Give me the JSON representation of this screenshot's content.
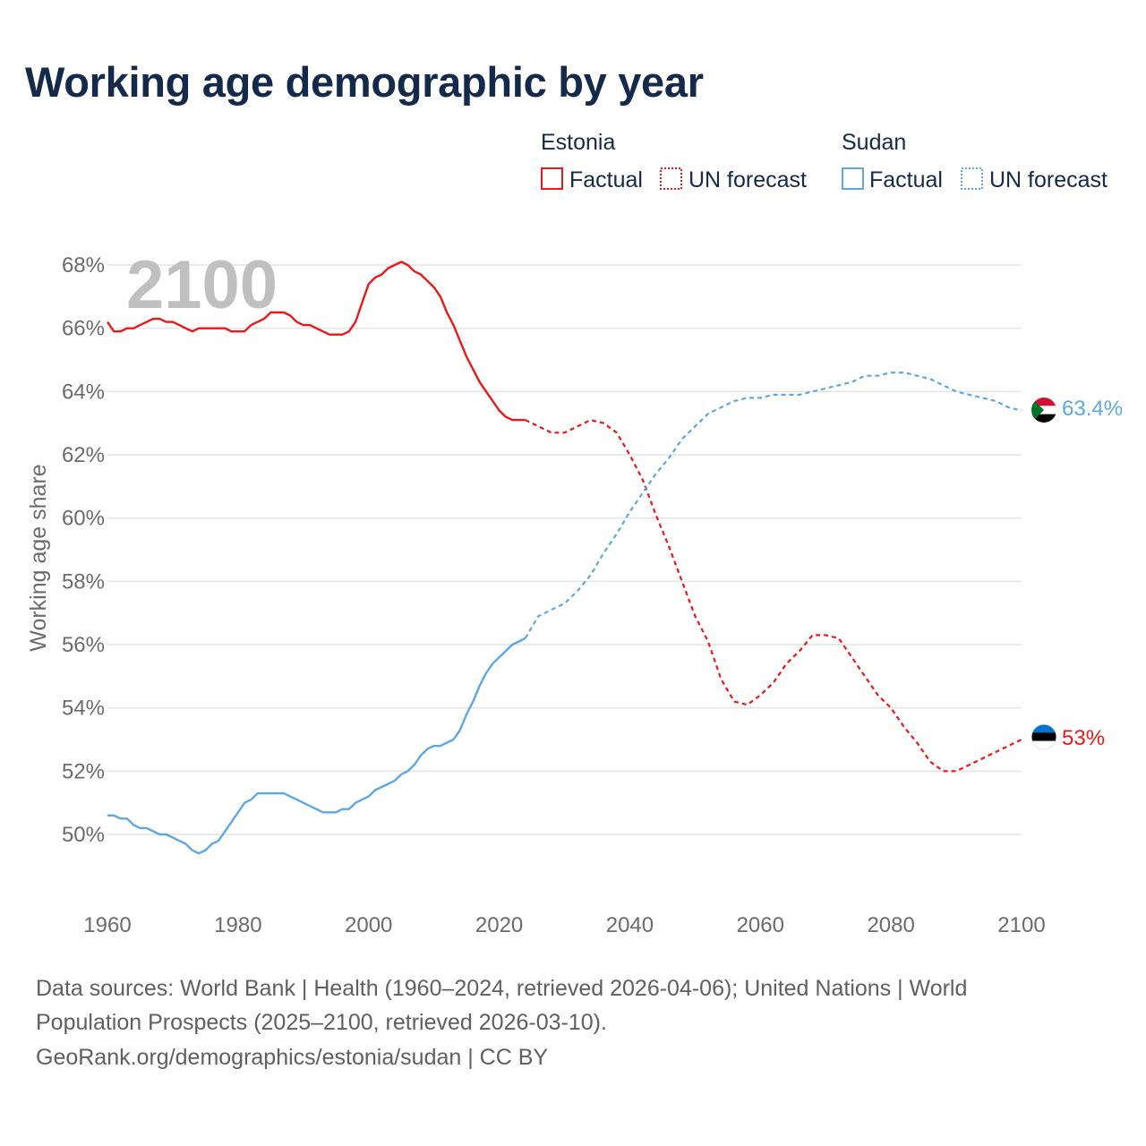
{
  "chart_data": {
    "type": "line",
    "title": "Working age demographic by year",
    "ylabel": "Working age share",
    "xlabel": "",
    "year_watermark": "2100",
    "xlim": [
      1960,
      2100
    ],
    "ylim": [
      48,
      69.5
    ],
    "x_ticks": [
      1960,
      1980,
      2000,
      2020,
      2040,
      2060,
      2080,
      2100
    ],
    "x_tick_labels": [
      "1960",
      "1980",
      "2000",
      "2020",
      "2040",
      "2060",
      "2080",
      "2100"
    ],
    "y_ticks": [
      50,
      52,
      54,
      56,
      58,
      60,
      62,
      64,
      66,
      68
    ],
    "y_tick_labels": [
      "50%",
      "52%",
      "54%",
      "56%",
      "58%",
      "60%",
      "62%",
      "64%",
      "66%",
      "68%"
    ],
    "legend": {
      "position": "top-right",
      "groups": [
        {
          "country": "Estonia",
          "factual_label": "Factual",
          "forecast_label": "UN forecast",
          "color": "#e8191b"
        },
        {
          "country": "Sudan",
          "factual_label": "Factual",
          "forecast_label": "UN forecast",
          "color": "#5ea8e2"
        }
      ]
    },
    "series": [
      {
        "name": "Estonia",
        "color": "#e8191b",
        "end_label": "53%",
        "factual": {
          "x": [
            1960,
            1961,
            1962,
            1963,
            1964,
            1965,
            1966,
            1967,
            1968,
            1969,
            1970,
            1971,
            1972,
            1973,
            1974,
            1975,
            1976,
            1977,
            1978,
            1979,
            1980,
            1981,
            1982,
            1983,
            1984,
            1985,
            1986,
            1987,
            1988,
            1989,
            1990,
            1991,
            1992,
            1993,
            1994,
            1995,
            1996,
            1997,
            1998,
            1999,
            2000,
            2001,
            2002,
            2003,
            2004,
            2005,
            2006,
            2007,
            2008,
            2009,
            2010,
            2011,
            2012,
            2013,
            2014,
            2015,
            2016,
            2017,
            2018,
            2019,
            2020,
            2021,
            2022,
            2023,
            2024
          ],
          "y": [
            66.2,
            65.9,
            65.9,
            66.0,
            66.0,
            66.1,
            66.2,
            66.3,
            66.3,
            66.2,
            66.2,
            66.1,
            66.0,
            65.9,
            66.0,
            66.0,
            66.0,
            66.0,
            66.0,
            65.9,
            65.9,
            65.9,
            66.1,
            66.2,
            66.3,
            66.5,
            66.5,
            66.5,
            66.4,
            66.2,
            66.1,
            66.1,
            66.0,
            65.9,
            65.8,
            65.8,
            65.8,
            65.9,
            66.2,
            66.8,
            67.4,
            67.6,
            67.7,
            67.9,
            68.0,
            68.1,
            68.0,
            67.8,
            67.7,
            67.5,
            67.3,
            67.0,
            66.5,
            66.1,
            65.6,
            65.1,
            64.7,
            64.3,
            64.0,
            63.7,
            63.4,
            63.2,
            63.1,
            63.1,
            63.1
          ]
        },
        "forecast": {
          "x": [
            2024,
            2026,
            2028,
            2030,
            2032,
            2034,
            2036,
            2038,
            2040,
            2042,
            2044,
            2046,
            2048,
            2050,
            2052,
            2054,
            2056,
            2058,
            2060,
            2062,
            2064,
            2066,
            2068,
            2070,
            2072,
            2074,
            2076,
            2078,
            2080,
            2082,
            2084,
            2086,
            2088,
            2090,
            2092,
            2094,
            2096,
            2098,
            2100
          ],
          "y": [
            63.1,
            62.9,
            62.7,
            62.7,
            62.9,
            63.1,
            63.0,
            62.7,
            62.0,
            61.2,
            60.1,
            59.1,
            58.0,
            56.9,
            56.1,
            54.9,
            54.2,
            54.1,
            54.4,
            54.8,
            55.4,
            55.8,
            56.3,
            56.3,
            56.2,
            55.6,
            55.0,
            54.4,
            54.0,
            53.4,
            52.9,
            52.3,
            52.0,
            52.0,
            52.2,
            52.4,
            52.6,
            52.8,
            53.0
          ]
        }
      },
      {
        "name": "Sudan",
        "color": "#5ea8e2",
        "end_label": "63.4%",
        "factual": {
          "x": [
            1960,
            1961,
            1962,
            1963,
            1964,
            1965,
            1966,
            1967,
            1968,
            1969,
            1970,
            1971,
            1972,
            1973,
            1974,
            1975,
            1976,
            1977,
            1978,
            1979,
            1980,
            1981,
            1982,
            1983,
            1984,
            1985,
            1986,
            1987,
            1988,
            1989,
            1990,
            1991,
            1992,
            1993,
            1994,
            1995,
            1996,
            1997,
            1998,
            1999,
            2000,
            2001,
            2002,
            2003,
            2004,
            2005,
            2006,
            2007,
            2008,
            2009,
            2010,
            2011,
            2012,
            2013,
            2014,
            2015,
            2016,
            2017,
            2018,
            2019,
            2020,
            2021,
            2022,
            2023,
            2024
          ],
          "y": [
            50.6,
            50.6,
            50.5,
            50.5,
            50.3,
            50.2,
            50.2,
            50.1,
            50.0,
            50.0,
            49.9,
            49.8,
            49.7,
            49.5,
            49.4,
            49.5,
            49.7,
            49.8,
            50.1,
            50.4,
            50.7,
            51.0,
            51.1,
            51.3,
            51.3,
            51.3,
            51.3,
            51.3,
            51.2,
            51.1,
            51.0,
            50.9,
            50.8,
            50.7,
            50.7,
            50.7,
            50.8,
            50.8,
            51.0,
            51.1,
            51.2,
            51.4,
            51.5,
            51.6,
            51.7,
            51.9,
            52.0,
            52.2,
            52.5,
            52.7,
            52.8,
            52.8,
            52.9,
            53.0,
            53.3,
            53.8,
            54.2,
            54.7,
            55.1,
            55.4,
            55.6,
            55.8,
            56.0,
            56.1,
            56.2
          ]
        },
        "forecast": {
          "x": [
            2024,
            2026,
            2028,
            2030,
            2032,
            2034,
            2036,
            2038,
            2040,
            2042,
            2044,
            2046,
            2048,
            2050,
            2052,
            2054,
            2056,
            2058,
            2060,
            2062,
            2064,
            2066,
            2068,
            2070,
            2072,
            2074,
            2076,
            2078,
            2080,
            2082,
            2084,
            2086,
            2088,
            2090,
            2092,
            2094,
            2096,
            2098,
            2100
          ],
          "y": [
            56.2,
            56.9,
            57.1,
            57.3,
            57.7,
            58.2,
            58.9,
            59.5,
            60.2,
            60.8,
            61.4,
            61.9,
            62.5,
            62.9,
            63.3,
            63.5,
            63.7,
            63.8,
            63.8,
            63.9,
            63.9,
            63.9,
            64.0,
            64.1,
            64.2,
            64.3,
            64.5,
            64.5,
            64.6,
            64.6,
            64.5,
            64.4,
            64.2,
            64.0,
            63.9,
            63.8,
            63.7,
            63.5,
            63.4
          ]
        }
      }
    ]
  },
  "sources": {
    "line1": "Data sources: World Bank | Health (1960–2024, retrieved 2026-04-06); United Nations | World",
    "line2": "Population Prospects (2025–2100, retrieved 2026-03-10).",
    "line3": "GeoRank.org/demographics/estonia/sudan | CC BY"
  }
}
